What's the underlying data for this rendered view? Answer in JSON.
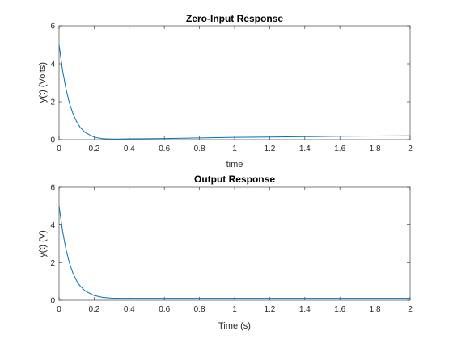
{
  "chart_data": [
    {
      "type": "line",
      "title": "Zero-Input Response",
      "xlabel": "time",
      "ylabel": "y(t) (Volts)",
      "xlim": [
        0,
        2
      ],
      "ylim": [
        0,
        6
      ],
      "xticks": [
        "0",
        "0.2",
        "0.4",
        "0.6",
        "0.8",
        "1",
        "1.2",
        "1.4",
        "1.6",
        "1.8",
        "2"
      ],
      "yticks": [
        "0",
        "2",
        "4",
        "6"
      ],
      "grid": false,
      "color": "#0072BD",
      "series": [
        {
          "x": [
            0,
            0.02,
            0.04,
            0.06,
            0.08,
            0.1,
            0.12,
            0.15,
            0.2,
            0.25,
            0.3,
            0.35,
            0.4,
            0.5,
            0.6,
            0.8,
            1.0,
            1.2,
            1.4,
            1.6,
            1.8,
            2.0
          ],
          "y": [
            5.0,
            3.65,
            2.65,
            1.9,
            1.35,
            0.95,
            0.65,
            0.37,
            0.13,
            0.05,
            0.03,
            0.03,
            0.04,
            0.05,
            0.06,
            0.09,
            0.12,
            0.14,
            0.16,
            0.18,
            0.19,
            0.2
          ]
        }
      ]
    },
    {
      "type": "line",
      "title": "Output Response",
      "xlabel": "Time (s)",
      "ylabel": "y(t) (V)",
      "xlim": [
        0,
        2
      ],
      "ylim": [
        0,
        6
      ],
      "xticks": [
        "0",
        "0.2",
        "0.4",
        "0.6",
        "0.8",
        "1",
        "1.2",
        "1.4",
        "1.6",
        "1.8",
        "2"
      ],
      "yticks": [
        "0",
        "2",
        "4",
        "6"
      ],
      "grid": false,
      "color": "#0072BD",
      "series": [
        {
          "x": [
            0,
            0.02,
            0.04,
            0.06,
            0.08,
            0.1,
            0.12,
            0.15,
            0.2,
            0.25,
            0.3,
            0.35,
            0.4,
            0.5,
            0.6,
            0.8,
            1.0,
            1.2,
            1.4,
            1.6,
            1.8,
            2.0
          ],
          "y": [
            5.0,
            3.67,
            2.68,
            1.95,
            1.42,
            1.04,
            0.76,
            0.49,
            0.25,
            0.15,
            0.11,
            0.1,
            0.1,
            0.1,
            0.1,
            0.1,
            0.1,
            0.1,
            0.1,
            0.1,
            0.1,
            0.1
          ]
        }
      ]
    }
  ]
}
